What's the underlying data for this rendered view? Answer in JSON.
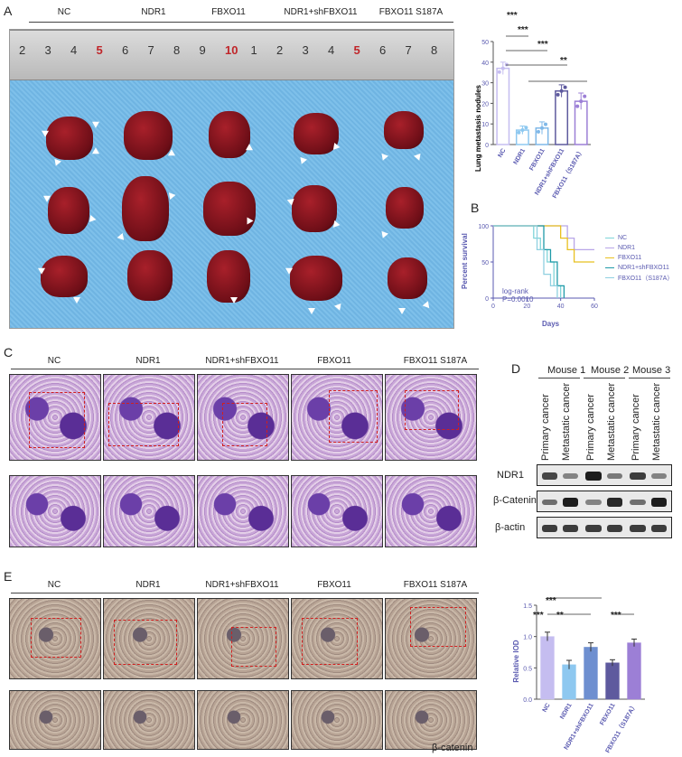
{
  "panelA": {
    "letter": "A",
    "groups": [
      "NC",
      "NDR1",
      "FBXO11",
      "NDR1+shFBXO11",
      "FBXO11 S187A"
    ],
    "ruler_numbers": [
      "2",
      "3",
      "4",
      "5",
      "6",
      "7",
      "8",
      "9",
      "10",
      "1",
      "2",
      "3",
      "4",
      "5",
      "6",
      "7",
      "8"
    ],
    "ruler_red": [
      false,
      false,
      false,
      true,
      false,
      false,
      false,
      false,
      true,
      false,
      false,
      false,
      false,
      true,
      false,
      false,
      false
    ]
  },
  "barTop": {
    "ylabel": "Lung metastasis nodules",
    "sig": [
      "***",
      "***",
      "***",
      "**"
    ]
  },
  "panelB": {
    "letter": "B",
    "ylabel": "Percent survival",
    "xlabel": "Days",
    "stat": "log-rank",
    "pvalue": "P=0.0010",
    "legend": [
      "NC",
      "NDR1",
      "FBXO11",
      "NDR1+shFBXO11",
      "FBXO11（S187A）"
    ]
  },
  "panelC": {
    "letter": "C",
    "groups": [
      "NC",
      "NDR1",
      "NDR1+shFBXO11",
      "FBXO11",
      "FBXO11 S187A"
    ]
  },
  "panelD": {
    "letter": "D",
    "mice": [
      "Mouse 1",
      "Mouse 2",
      "Mouse 3"
    ],
    "lanes": [
      "Primary cancer",
      "Metastatic cancer",
      "Primary cancer",
      "Metastatic cancer",
      "Primary cancer",
      "Metastatic cancer"
    ],
    "rows": [
      "NDR1",
      "β-Catenin",
      "β-actin"
    ]
  },
  "panelE": {
    "letter": "E",
    "groups": [
      "NC",
      "NDR1",
      "NDR1+shFBXO11",
      "FBXO11",
      "FBXO11 S187A"
    ],
    "stain": "β-catenin"
  },
  "barBottom": {
    "ylabel": "Relative IOD",
    "sig": [
      "***",
      "***",
      "**",
      "***"
    ]
  },
  "chart_data": [
    {
      "type": "bar",
      "categories": [
        "NC",
        "NDR1",
        "FBXO11",
        "NDR1+shFBXO11",
        "FBXO11（S187A）"
      ],
      "values": [
        37,
        7,
        8,
        26,
        21
      ],
      "errors": [
        3,
        2,
        3,
        3,
        4
      ],
      "colors": [
        "#c5bdf0",
        "#8ec8f0",
        "#7fb8e8",
        "#5e5a9e",
        "#9c7fd6"
      ],
      "ylabel": "Lung metastasis nodules",
      "ylim": [
        0,
        50
      ],
      "yticks": [
        0,
        10,
        20,
        30,
        40,
        50
      ]
    },
    {
      "type": "line",
      "ylabel": "Percent survival",
      "xlabel": "Days",
      "xlim": [
        0,
        60
      ],
      "ylim": [
        0,
        100
      ],
      "xticks": [
        0,
        20,
        40,
        60
      ],
      "yticks": [
        0,
        50,
        100
      ],
      "series": [
        {
          "name": "NC",
          "color": "#7fd4d8",
          "x": [
            0,
            24,
            28,
            32,
            36,
            40
          ],
          "y": [
            100,
            83,
            67,
            50,
            17,
            0
          ]
        },
        {
          "name": "NDR1",
          "color": "#b8a6e8",
          "x": [
            0,
            44,
            48,
            60
          ],
          "y": [
            100,
            83,
            67,
            67
          ]
        },
        {
          "name": "FBXO11",
          "color": "#e8c020",
          "x": [
            0,
            40,
            44,
            48,
            60
          ],
          "y": [
            100,
            83,
            67,
            50,
            50
          ]
        },
        {
          "name": "NDR1+shFBXO11",
          "color": "#1f9aa8",
          "x": [
            0,
            30,
            34,
            38,
            42
          ],
          "y": [
            100,
            67,
            50,
            17,
            0
          ]
        },
        {
          "name": "FBXO11（S187A）",
          "color": "#8fd0e0",
          "x": [
            0,
            26,
            30,
            34,
            38
          ],
          "y": [
            100,
            67,
            33,
            17,
            0
          ]
        }
      ]
    },
    {
      "type": "bar",
      "categories": [
        "NC",
        "NDR1",
        "NDR1+shFBXO11",
        "FBXO11",
        "FBXO11（S187A）"
      ],
      "values": [
        1.0,
        0.55,
        0.83,
        0.58,
        0.9
      ],
      "errors": [
        0.07,
        0.07,
        0.07,
        0.05,
        0.06
      ],
      "colors": [
        "#c5bdf0",
        "#8ec8f0",
        "#6e8fd0",
        "#5e5a9e",
        "#9c7fd6"
      ],
      "ylabel": "Relative IOD",
      "ylim": [
        0,
        1.5
      ],
      "yticks": [
        0.0,
        0.5,
        1.0,
        1.5
      ]
    }
  ]
}
